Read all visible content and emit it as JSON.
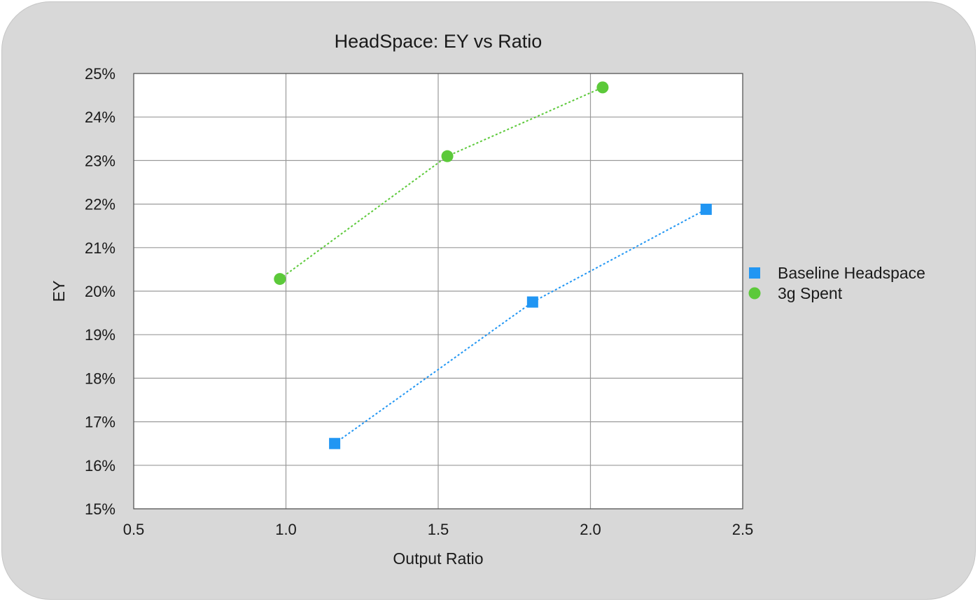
{
  "chart_data": {
    "type": "scatter",
    "title": "HeadSpace: EY vs Ratio",
    "xlabel": "Output Ratio",
    "ylabel": "EY",
    "xlim": [
      0.5,
      2.5
    ],
    "ylim": [
      15,
      25
    ],
    "x_ticks": [
      0.5,
      1.0,
      1.5,
      2.0,
      2.5
    ],
    "x_tick_labels": [
      "0.5",
      "1.0",
      "1.5",
      "2.0",
      "2.5"
    ],
    "y_ticks": [
      15,
      16,
      17,
      18,
      19,
      20,
      21,
      22,
      23,
      24,
      25
    ],
    "y_tick_labels": [
      "15%",
      "16%",
      "17%",
      "18%",
      "19%",
      "20%",
      "21%",
      "22%",
      "23%",
      "24%",
      "25%"
    ],
    "grid": true,
    "legend_position": "right",
    "series": [
      {
        "name": "Baseline Headspace",
        "color": "#2196f3",
        "marker": "square",
        "line": "dotted",
        "points": [
          {
            "x": 1.16,
            "y": 16.5
          },
          {
            "x": 1.81,
            "y": 19.75
          },
          {
            "x": 2.38,
            "y": 21.88
          }
        ]
      },
      {
        "name": "3g Spent",
        "color": "#5cc93a",
        "marker": "circle",
        "line": "dotted",
        "points": [
          {
            "x": 0.98,
            "y": 20.28
          },
          {
            "x": 1.53,
            "y": 23.1
          },
          {
            "x": 2.04,
            "y": 24.68
          }
        ]
      }
    ]
  }
}
